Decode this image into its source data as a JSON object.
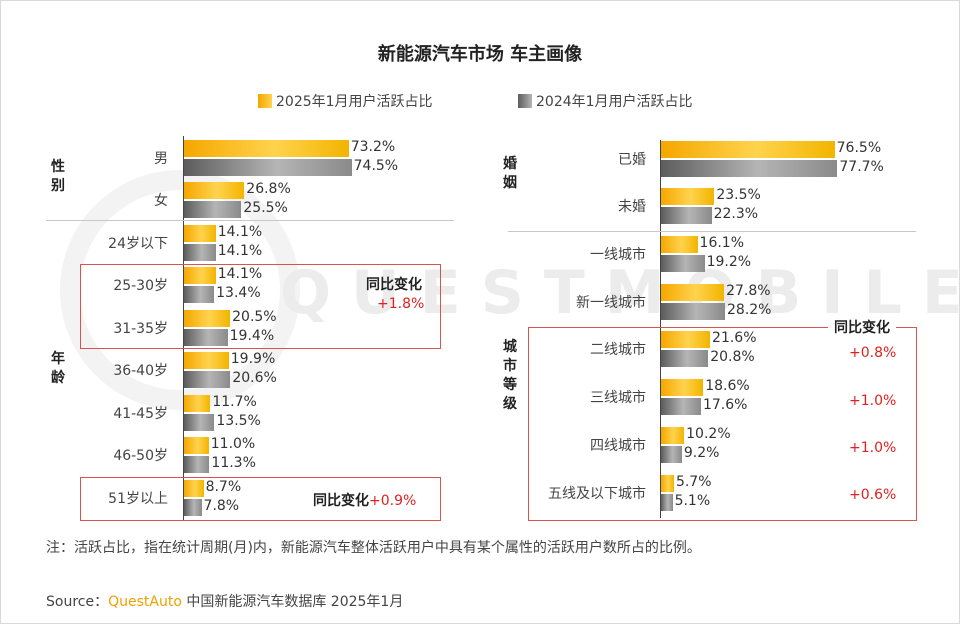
{
  "title": "新能源汽车市场 车主画像",
  "legend": {
    "current": "2025年1月用户活跃占比",
    "previous": "2024年1月用户活跃占比"
  },
  "colors": {
    "current": "#f5b400",
    "previous": "#7f7f7f",
    "highlight": "#e02020",
    "box": "#d9534f"
  },
  "watermark": "QUESTMOBILE",
  "note": "注：活跃占比，指在统计周期(月)内，新能源汽车整体活跃用户中具有某个属性的活跃用户数所占的比例。",
  "source": {
    "prefix": "Source：",
    "brand": "QuestAuto",
    "suffix": " 中国新能源汽车数据库 2025年1月"
  },
  "chart_data": [
    {
      "type": "bar",
      "orientation": "horizontal",
      "groups": [
        {
          "name": "性别",
          "categories": [
            "男",
            "女"
          ]
        },
        {
          "name": "年龄",
          "categories": [
            "24岁以下",
            "25-30岁",
            "31-35岁",
            "36-40岁",
            "41-45岁",
            "46-50岁",
            "51岁以上"
          ]
        }
      ],
      "categories": [
        "男",
        "女",
        "24岁以下",
        "25-30岁",
        "31-35岁",
        "36-40岁",
        "41-45岁",
        "46-50岁",
        "51岁以上"
      ],
      "series": [
        {
          "name": "2025年1月用户活跃占比",
          "values": [
            73.2,
            26.8,
            14.1,
            14.1,
            20.5,
            19.9,
            11.7,
            11.0,
            8.7
          ],
          "labels": [
            "73.2%",
            "26.8%",
            "14.1%",
            "14.1%",
            "20.5%",
            "19.9%",
            "11.7%",
            "11.0%",
            "8.7%"
          ]
        },
        {
          "name": "2024年1月用户活跃占比",
          "values": [
            74.5,
            25.5,
            14.1,
            13.4,
            19.4,
            20.6,
            13.5,
            11.3,
            7.8
          ],
          "labels": [
            "74.5%",
            "25.5%",
            "14.1%",
            "13.4%",
            "19.4%",
            "20.6%",
            "13.5%",
            "11.3%",
            "7.8%"
          ]
        }
      ],
      "annotations": [
        {
          "title": "同比变化",
          "value": "+1.8%"
        },
        {
          "title": "同比变化",
          "value": "+0.9%"
        }
      ]
    },
    {
      "type": "bar",
      "orientation": "horizontal",
      "groups": [
        {
          "name": "婚姻",
          "categories": [
            "已婚",
            "未婚"
          ]
        },
        {
          "name": "城市等级",
          "categories": [
            "一线城市",
            "新一线城市",
            "二线城市",
            "三线城市",
            "四线城市",
            "五线及以下城市"
          ]
        }
      ],
      "categories": [
        "已婚",
        "未婚",
        "一线城市",
        "新一线城市",
        "二线城市",
        "三线城市",
        "四线城市",
        "五线及以下城市"
      ],
      "series": [
        {
          "name": "2025年1月用户活跃占比",
          "values": [
            76.5,
            23.5,
            16.1,
            27.8,
            21.6,
            18.6,
            10.2,
            5.7
          ],
          "labels": [
            "76.5%",
            "23.5%",
            "16.1%",
            "27.8%",
            "21.6%",
            "18.6%",
            "10.2%",
            "5.7%"
          ]
        },
        {
          "name": "2024年1月用户活跃占比",
          "values": [
            77.7,
            22.3,
            19.2,
            28.2,
            20.8,
            17.6,
            9.2,
            5.1
          ],
          "labels": [
            "77.7%",
            "22.3%",
            "19.2%",
            "28.2%",
            "20.8%",
            "17.6%",
            "9.2%",
            "5.1%"
          ]
        }
      ],
      "annotations": [
        {
          "title": "同比变化",
          "values": [
            "+0.8%",
            "+1.0%",
            "+1.0%",
            "+0.6%"
          ]
        }
      ]
    }
  ]
}
